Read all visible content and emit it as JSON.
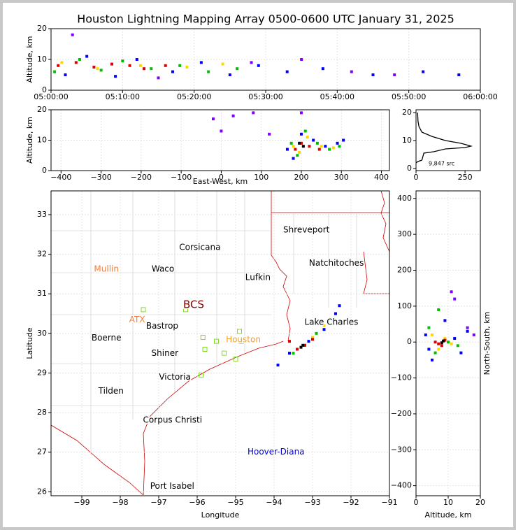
{
  "title": "Houston Lightning Mapping Array 0500-0600 UTC January 31, 2025",
  "chart_data": [
    {
      "type": "scatter",
      "ylabel": "Altitude, km",
      "xlim": [
        "05:00:00",
        "06:00:00"
      ],
      "xticks": [
        "05:00:00",
        "05:10:00",
        "05:20:00",
        "05:30:00",
        "05:40:00",
        "05:50:00",
        "06:00:00"
      ],
      "ylim": [
        0,
        20
      ],
      "yticks": [
        0,
        10,
        20
      ],
      "grid": true,
      "series": [
        {
          "color": "#0000ff",
          "x": [
            "05:02:00",
            "05:05:00",
            "05:09:00",
            "05:12:00",
            "05:17:00",
            "05:21:00",
            "05:25:00",
            "05:29:00",
            "05:33:00",
            "05:38:00",
            "05:45:00",
            "05:52:00",
            "05:57:00"
          ],
          "y": [
            5,
            11,
            4.5,
            10,
            6,
            9,
            5,
            8,
            6,
            7,
            5,
            6,
            5
          ]
        },
        {
          "color": "#00c000",
          "x": [
            "05:00:30",
            "05:04:00",
            "05:07:00",
            "05:10:00",
            "05:14:00",
            "05:18:00",
            "05:22:00",
            "05:26:00"
          ],
          "y": [
            6,
            10,
            6.5,
            9.5,
            7,
            8,
            6,
            7
          ]
        },
        {
          "color": "#ffd700",
          "x": [
            "05:01:30",
            "05:06:30",
            "05:12:30",
            "05:19:00",
            "05:24:00"
          ],
          "y": [
            9,
            7,
            8,
            7.5,
            8.5
          ]
        },
        {
          "color": "#e00000",
          "x": [
            "05:01:00",
            "05:03:30",
            "05:06:00",
            "05:08:30",
            "05:11:00",
            "05:13:00",
            "05:16:00"
          ],
          "y": [
            8,
            9,
            7.5,
            8.5,
            8,
            7,
            8
          ]
        },
        {
          "color": "#8000ff",
          "x": [
            "05:03:00",
            "05:15:00",
            "05:28:00",
            "05:35:00",
            "05:42:00",
            "05:48:00"
          ],
          "y": [
            18,
            4,
            9,
            10,
            6,
            5
          ]
        }
      ]
    },
    {
      "type": "scatter",
      "ylabel": "Altitude, km",
      "xlabel": "East-West, km",
      "xlim": [
        -425,
        420
      ],
      "xticks": [
        {
          "value": -400,
          "label": "−400"
        },
        {
          "value": -300,
          "label": "−300"
        },
        {
          "value": -200,
          "label": "−200"
        },
        {
          "value": -100,
          "label": "−100"
        },
        0,
        100,
        200,
        300,
        400
      ],
      "ylim": [
        0,
        20
      ],
      "yticks": [
        0,
        10,
        20
      ],
      "grid": true,
      "series": [
        {
          "color": "#8000ff",
          "x": [
            -20,
            0,
            30,
            80,
            120,
            200
          ],
          "y": [
            17,
            13,
            18,
            19,
            12,
            19
          ]
        },
        {
          "color": "#0000ff",
          "x": [
            165,
            180,
            200,
            230,
            260,
            290,
            305
          ],
          "y": [
            7,
            4,
            12,
            10,
            8,
            9,
            10
          ]
        },
        {
          "color": "#00c000",
          "x": [
            175,
            190,
            210,
            240,
            270,
            295
          ],
          "y": [
            9,
            5,
            13,
            9,
            7,
            8
          ]
        },
        {
          "color": "#ffd700",
          "x": [
            180,
            195,
            215,
            250,
            280
          ],
          "y": [
            8,
            6,
            11,
            8,
            7.5
          ]
        },
        {
          "color": "#e00000",
          "x": [
            185,
            200,
            220,
            245
          ],
          "y": [
            7,
            9,
            8,
            7
          ]
        },
        {
          "color": "#000000",
          "x": [
            195,
            205
          ],
          "y": [
            9,
            8
          ]
        }
      ]
    },
    {
      "type": "line",
      "annotation": "9,847 src",
      "xlim": [
        0,
        328
      ],
      "xticks": [
        0,
        250
      ],
      "ylim": [
        -0.75,
        21
      ],
      "yticks": [
        0,
        10,
        20
      ],
      "series": [
        {
          "color": "#000000",
          "x": [
            8,
            10,
            15,
            30,
            80,
            150,
            230,
            280,
            250,
            150,
            90,
            40,
            30,
            10,
            0
          ],
          "y": [
            20,
            17,
            15,
            13,
            11.5,
            10,
            9,
            8,
            7.5,
            7,
            6,
            5.5,
            3,
            2.5,
            2
          ]
        }
      ]
    },
    {
      "type": "map",
      "xlabel": "Longitude",
      "ylabel": "Latitude",
      "xlim": [
        -99.8,
        -91
      ],
      "xticks": [
        {
          "value": -99,
          "label": "−99"
        },
        {
          "value": -98,
          "label": "−98"
        },
        {
          "value": -97,
          "label": "−97"
        },
        {
          "value": -96,
          "label": "−96"
        },
        {
          "value": -95,
          "label": "−95"
        },
        {
          "value": -94,
          "label": "−94"
        },
        {
          "value": -93,
          "label": "−93"
        },
        {
          "value": -92,
          "label": "−92"
        },
        {
          "value": -91,
          "label": "−91"
        }
      ],
      "ylim": [
        25.9,
        33.6
      ],
      "yticks": [
        26,
        27,
        28,
        29,
        30,
        31,
        32,
        33
      ],
      "grid": true,
      "places": [
        {
          "name": "Shreveport",
          "lon": -93.16,
          "lat": 32.61,
          "color": "#000000"
        },
        {
          "name": "Corsicana",
          "lon": -95.93,
          "lat": 32.17,
          "color": "#000000"
        },
        {
          "name": "Natchitoches",
          "lon": -92.38,
          "lat": 31.77,
          "color": "#000000"
        },
        {
          "name": "Mullin",
          "lon": -98.36,
          "lat": 31.62,
          "color": "#f08040"
        },
        {
          "name": "Waco",
          "lon": -96.89,
          "lat": 31.62,
          "color": "#000000"
        },
        {
          "name": "Lufkin",
          "lon": -94.42,
          "lat": 31.41,
          "color": "#000000"
        },
        {
          "name": "BCS",
          "lon": -96.09,
          "lat": 30.72,
          "color": "#800000"
        },
        {
          "name": "ATX",
          "lon": -97.56,
          "lat": 30.34,
          "color": "#f08040"
        },
        {
          "name": "Lake Charles",
          "lon": -92.51,
          "lat": 30.28,
          "color": "#000000"
        },
        {
          "name": "Bastrop",
          "lon": -96.91,
          "lat": 30.18,
          "color": "#000000"
        },
        {
          "name": "Houston",
          "lon": -94.8,
          "lat": 29.84,
          "color": "#f0a030"
        },
        {
          "name": "Boerne",
          "lon": -98.36,
          "lat": 29.88,
          "color": "#000000"
        },
        {
          "name": "Shiner",
          "lon": -96.84,
          "lat": 29.49,
          "color": "#000000"
        },
        {
          "name": "Victoria",
          "lon": -96.58,
          "lat": 28.89,
          "color": "#000000"
        },
        {
          "name": "Tilden",
          "lon": -98.24,
          "lat": 28.54,
          "color": "#000000"
        },
        {
          "name": "Corpus Christi",
          "lon": -96.64,
          "lat": 27.81,
          "color": "#000000"
        },
        {
          "name": "Hoover-Diana",
          "lon": -93.95,
          "lat": 27.0,
          "color": "#0000d0"
        },
        {
          "name": "Port Isabel",
          "lon": -96.65,
          "lat": 26.14,
          "color": "#000000"
        }
      ],
      "stations": {
        "color": "#80e020",
        "lon": [
          -97.4,
          -96.3,
          -95.85,
          -94.9,
          -94.85,
          -95.5,
          -95.8,
          -95.3,
          -95.0,
          -95.9
        ],
        "lat": [
          30.6,
          30.6,
          29.9,
          30.05,
          29.8,
          29.8,
          29.6,
          29.5,
          29.35,
          28.95
        ]
      },
      "series": [
        {
          "color": "#0000ff",
          "x": [
            -93.9,
            -93.6,
            -93.1,
            -92.7,
            -92.4,
            -92.3
          ],
          "y": [
            29.2,
            29.5,
            29.8,
            30.1,
            30.5,
            30.7
          ]
        },
        {
          "color": "#00c000",
          "x": [
            -93.5,
            -93.2,
            -92.9,
            -92.6
          ],
          "y": [
            29.5,
            29.7,
            30.0,
            30.3
          ]
        },
        {
          "color": "#ffd700",
          "x": [
            -93.4,
            -93.0,
            -92.7
          ],
          "y": [
            29.6,
            29.9,
            30.2
          ]
        },
        {
          "color": "#e00000",
          "x": [
            -93.6,
            -93.4,
            -93.2,
            -93.0
          ],
          "y": [
            29.8,
            29.6,
            29.7,
            29.85
          ]
        },
        {
          "color": "#000000",
          "x": [
            -93.3,
            -93.25
          ],
          "y": [
            29.65,
            29.7
          ]
        }
      ]
    },
    {
      "type": "scatter",
      "xlabel": "Altitude, km",
      "ylabel": "North-South, km",
      "xlim": [
        0,
        20
      ],
      "xticks": [
        0,
        10,
        20
      ],
      "ylim": [
        -428,
        421
      ],
      "yticks": [
        {
          "value": -400,
          "label": "−400"
        },
        {
          "value": -300,
          "label": "−300"
        },
        {
          "value": -200,
          "label": "−200"
        },
        {
          "value": -100,
          "label": "−100"
        },
        0,
        100,
        200,
        300,
        400
      ],
      "grid": true,
      "series": [
        {
          "color": "#8000ff",
          "x": [
            16,
            18,
            12,
            11
          ],
          "y": [
            40,
            20,
            120,
            140
          ]
        },
        {
          "color": "#0000ff",
          "x": [
            3,
            5,
            12,
            14,
            9,
            16,
            4
          ],
          "y": [
            20,
            -50,
            10,
            -30,
            60,
            30,
            -20
          ]
        },
        {
          "color": "#00c000",
          "x": [
            4,
            6,
            10,
            7,
            13
          ],
          "y": [
            40,
            -30,
            0,
            90,
            -10
          ]
        },
        {
          "color": "#ffd700",
          "x": [
            5,
            7,
            9,
            11
          ],
          "y": [
            20,
            -20,
            10,
            -5
          ]
        },
        {
          "color": "#e00000",
          "x": [
            6,
            8,
            9,
            7
          ],
          "y": [
            0,
            -10,
            5,
            -5
          ]
        },
        {
          "color": "#000000",
          "x": [
            8,
            8.5
          ],
          "y": [
            -2,
            3
          ]
        }
      ]
    }
  ]
}
